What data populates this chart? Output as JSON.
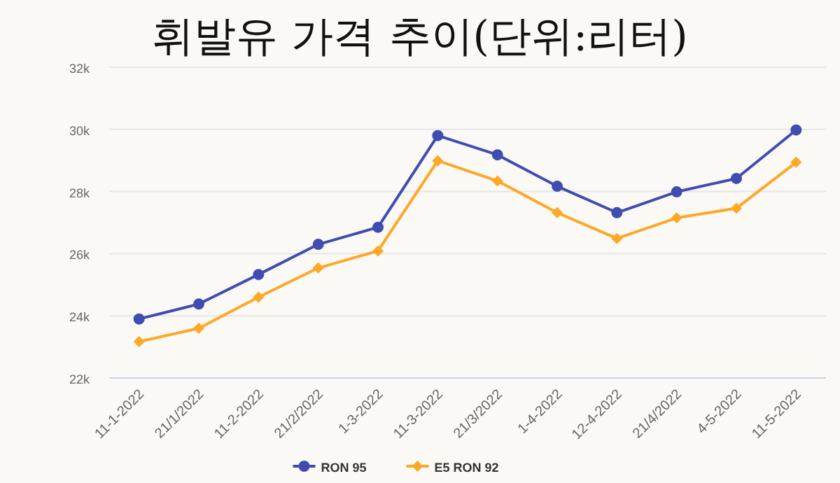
{
  "chart_data": {
    "type": "line",
    "title": "휘발유 가격 추이(단위:리터)",
    "categories": [
      "11-1-2022",
      "21/1/2022",
      "11-2-2022",
      "21/2/2022",
      "1-3-2022",
      "11-3-2022",
      "21/3/2022",
      "1-4-2022",
      "12-4-2022",
      "21/4/2022",
      "4-5-2022",
      "11-5-2022"
    ],
    "series": [
      {
        "name": "RON 95",
        "color": "#3f4db0",
        "marker": "circle",
        "values": [
          23900,
          24380,
          25330,
          26300,
          26850,
          29800,
          29180,
          28170,
          27320,
          27990,
          28420,
          29980
        ]
      },
      {
        "name": "E5 RON 92",
        "color": "#ffa726",
        "marker": "diamond",
        "values": [
          23170,
          23600,
          24600,
          25540,
          26090,
          28990,
          28340,
          27320,
          26490,
          27150,
          27460,
          28940
        ]
      }
    ],
    "ylim": [
      22000,
      32000
    ],
    "yticks": [
      {
        "value": 22000,
        "label": "22k"
      },
      {
        "value": 24000,
        "label": "24k"
      },
      {
        "value": 26000,
        "label": "26k"
      },
      {
        "value": 28000,
        "label": "28k"
      },
      {
        "value": 30000,
        "label": "30k"
      },
      {
        "value": 32000,
        "label": "32k"
      }
    ],
    "grid": "y",
    "legend": "bottom",
    "line_style": "solid"
  }
}
